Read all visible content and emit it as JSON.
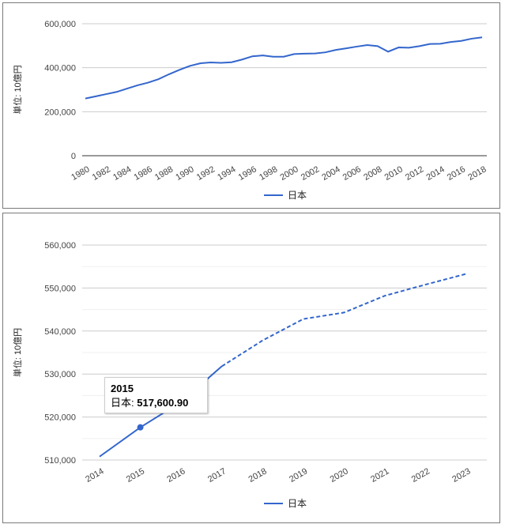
{
  "chart_data": [
    {
      "type": "line",
      "ylabel": "単位: 10億円",
      "ylim": [
        0,
        600000
      ],
      "yticks": [
        0,
        200000,
        400000,
        600000
      ],
      "ytick_labels": [
        "0",
        "200,000",
        "400,000",
        "600,000"
      ],
      "x": [
        1980,
        1981,
        1982,
        1983,
        1984,
        1985,
        1986,
        1987,
        1988,
        1989,
        1990,
        1991,
        1992,
        1993,
        1994,
        1995,
        1996,
        1997,
        1998,
        1999,
        2000,
        2001,
        2002,
        2003,
        2004,
        2005,
        2006,
        2007,
        2008,
        2009,
        2010,
        2011,
        2012,
        2013,
        2014,
        2015,
        2016,
        2017,
        2018
      ],
      "xtick_labels": [
        "1980",
        "1982",
        "1984",
        "1986",
        "1988",
        "1990",
        "1992",
        "1994",
        "1996",
        "1998",
        "2000",
        "2002",
        "2004",
        "2006",
        "2008",
        "2010",
        "2012",
        "2014",
        "2016",
        "2018"
      ],
      "series": [
        {
          "name": "日本",
          "color": "#3366cc",
          "values": [
            260000,
            270000,
            280000,
            290000,
            305000,
            320000,
            332000,
            348000,
            370000,
            390000,
            408000,
            420000,
            424000,
            422000,
            425000,
            437000,
            452000,
            456000,
            450000,
            450000,
            462000,
            464000,
            465000,
            470000,
            481000,
            488000,
            496000,
            503000,
            498000,
            473000,
            492000,
            491000,
            498000,
            508000,
            509000,
            517000,
            522000,
            532000,
            538000
          ]
        }
      ],
      "grid": true,
      "legend": "bottom"
    },
    {
      "type": "line",
      "ylabel": "単位: 10億円",
      "ylim": [
        510000,
        560000
      ],
      "yticks": [
        510000,
        520000,
        530000,
        540000,
        550000,
        560000
      ],
      "ytick_labels": [
        "510,000",
        "520,000",
        "530,000",
        "540,000",
        "550,000",
        "560,000"
      ],
      "x": [
        2014,
        2015,
        2016,
        2017,
        2018,
        2019,
        2020,
        2021,
        2022,
        2023
      ],
      "xtick_labels": [
        "2014",
        "2015",
        "2016",
        "2017",
        "2018",
        "2019",
        "2020",
        "2021",
        "2022",
        "2023"
      ],
      "series": [
        {
          "name": "日本",
          "color": "#3366cc",
          "values": [
            510800,
            517600.9,
            523500,
            531800,
            537800,
            542800,
            544300,
            548200,
            550800,
            553300
          ],
          "projected_from": "2017"
        }
      ],
      "grid": true,
      "legend": "bottom",
      "tooltip": {
        "title": "2015",
        "label": "日本: ",
        "value": "517,600.90"
      }
    }
  ]
}
